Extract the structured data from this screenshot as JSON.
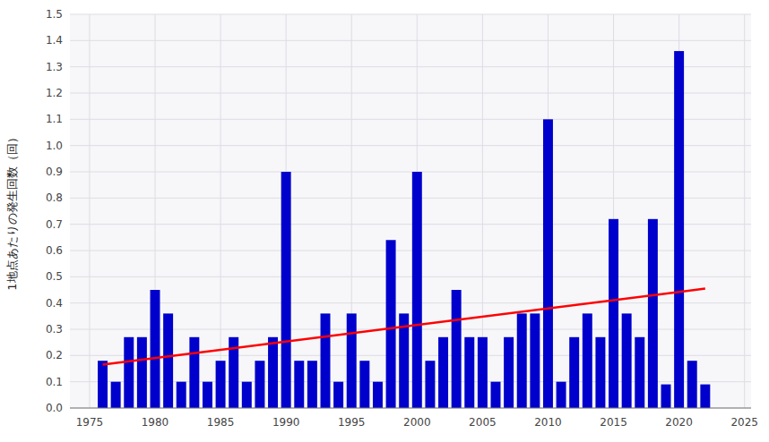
{
  "chart_data": {
    "type": "bar",
    "y_label": "1地点あたりの発生回数（回）",
    "x": [
      1976,
      1977,
      1978,
      1979,
      1980,
      1981,
      1982,
      1983,
      1984,
      1985,
      1986,
      1987,
      1988,
      1989,
      1990,
      1991,
      1992,
      1993,
      1994,
      1995,
      1996,
      1997,
      1998,
      1999,
      2000,
      2001,
      2002,
      2003,
      2004,
      2005,
      2006,
      2007,
      2008,
      2009,
      2010,
      2011,
      2012,
      2013,
      2014,
      2015,
      2016,
      2017,
      2018,
      2019,
      2020,
      2021,
      2022
    ],
    "values": [
      0.18,
      0.1,
      0.27,
      0.27,
      0.45,
      0.36,
      0.1,
      0.27,
      0.1,
      0.18,
      0.27,
      0.1,
      0.18,
      0.27,
      0.9,
      0.18,
      0.18,
      0.36,
      0.1,
      0.36,
      0.18,
      0.1,
      0.64,
      0.36,
      0.9,
      0.18,
      0.27,
      0.45,
      0.27,
      0.27,
      0.1,
      0.27,
      0.36,
      0.36,
      1.1,
      0.1,
      0.27,
      0.36,
      0.27,
      0.72,
      0.36,
      0.27,
      0.72,
      0.09,
      1.36,
      0.18,
      0.09
    ],
    "color": "#0000CC",
    "trend_line": {
      "x": [
        1976,
        2022
      ],
      "values": [
        0.165,
        0.455
      ],
      "color": "#FF0000"
    },
    "xlim": [
      1973.5,
      2025.5
    ],
    "ylim": [
      0,
      1.5
    ],
    "xticks": [
      1975,
      1980,
      1985,
      1990,
      1995,
      2000,
      2005,
      2010,
      2015,
      2020,
      2025
    ],
    "yticks": [
      {
        "value": 0,
        "label": "0.0"
      },
      0.1,
      0.2,
      0.3,
      0.4,
      0.5,
      0.6,
      0.7,
      0.8,
      0.9,
      {
        "value": 1.0,
        "label": "1.0"
      },
      1.1,
      1.2,
      1.3,
      1.4,
      1.5
    ],
    "grid": true
  }
}
